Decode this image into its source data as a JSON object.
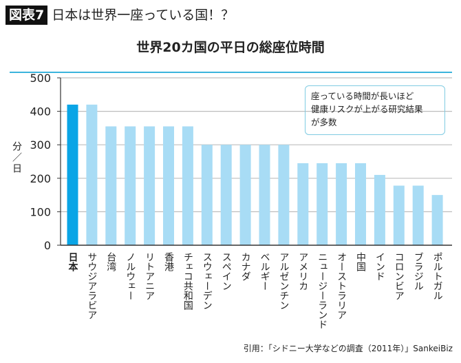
{
  "header": {
    "badge": "図表7",
    "headline": "日本は世界一座っている国！？"
  },
  "chart_data": {
    "type": "bar",
    "title": "世界20カ国の平日の総座位時間",
    "ylabel": "分／日",
    "xlabel": "",
    "ylim": [
      0,
      500
    ],
    "yticks": [
      0,
      100,
      200,
      300,
      400,
      500
    ],
    "grid": true,
    "categories": [
      "日本",
      "サウジアラビア",
      "台湾",
      "ノルウェー",
      "リトアニア",
      "香港",
      "チェコ共和国",
      "スウェーデン",
      "スペイン",
      "カナダ",
      "ベルギー",
      "アルゼンチン",
      "アメリカ",
      "ニュージーランド",
      "オーストラリア",
      "中国",
      "インド",
      "コロンビア",
      "ブラジル",
      "ポルトガル"
    ],
    "values": [
      420,
      420,
      355,
      355,
      355,
      355,
      355,
      300,
      300,
      300,
      300,
      300,
      245,
      245,
      245,
      245,
      210,
      178,
      178,
      150
    ],
    "highlight_index": 0,
    "colors": {
      "highlight": "#0aa5e6",
      "default": "#a8dcf5",
      "grid": "#bdbdbd",
      "rule": "#3bb4dc"
    },
    "annotation": [
      "座っている時間が長いほど",
      "健康リスクが上がる研究結果",
      "が多数"
    ]
  },
  "source": "引用：「シドニー大学などの調査（2011年）」SankeiBiz"
}
